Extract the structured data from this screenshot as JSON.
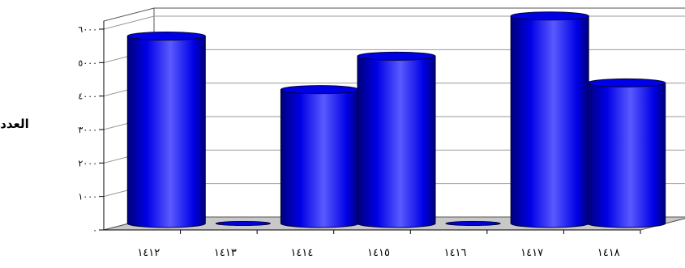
{
  "chart_data": {
    "type": "bar",
    "style": "3d-cylinder",
    "ylabel": "العدد",
    "categories": [
      "١٤١٢",
      "١٤١٣",
      "١٤١٤",
      "١٤١٥",
      "١٤١٦",
      "١٤١٧",
      "١٤١٨"
    ],
    "values": [
      5600,
      0,
      4000,
      5000,
      0,
      6200,
      4200
    ],
    "yticks": [
      {
        "value": 0,
        "label": "٠"
      },
      {
        "value": 1000,
        "label": "١٠٠٠"
      },
      {
        "value": 2000,
        "label": "٢٠٠٠"
      },
      {
        "value": 3000,
        "label": "٣٠٠٠"
      },
      {
        "value": 4000,
        "label": "٤٠٠٠"
      },
      {
        "value": 5000,
        "label": "٥٠٠٠"
      },
      {
        "value": 6000,
        "label": "٦٠٠٠"
      }
    ],
    "ylim": [
      0,
      6000
    ],
    "grid": true,
    "legend": "none",
    "colors": {
      "bar": "#0000e6",
      "bar_dark": "#00007a",
      "bar_light": "#5a5aff",
      "floor": "#c8c8c8",
      "grid": "#9a9a9a",
      "axis": "#000000"
    }
  }
}
